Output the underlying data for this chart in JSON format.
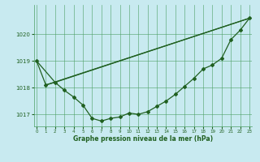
{
  "xlabel": "Graphe pression niveau de la mer (hPa)",
  "background_color": "#c8eaf0",
  "grid_color": "#4ca064",
  "line_color": "#206020",
  "ylim": [
    1016.55,
    1021.1
  ],
  "xlim": [
    -0.3,
    23.3
  ],
  "yticks": [
    1017,
    1018,
    1019,
    1020
  ],
  "xticks": [
    0,
    1,
    2,
    3,
    4,
    5,
    6,
    7,
    8,
    9,
    10,
    11,
    12,
    13,
    14,
    15,
    16,
    17,
    18,
    19,
    20,
    21,
    22,
    23
  ],
  "series_main": {
    "x": [
      0,
      1,
      2,
      3,
      4,
      5,
      6,
      7,
      8,
      9,
      10,
      11,
      12,
      13,
      14,
      15,
      16,
      17,
      18,
      19,
      20,
      21,
      22,
      23
    ],
    "y": [
      1019.0,
      1018.1,
      1018.2,
      1017.9,
      1017.65,
      1017.35,
      1016.85,
      1016.75,
      1016.85,
      1016.9,
      1017.05,
      1017.0,
      1017.1,
      1017.3,
      1017.5,
      1017.75,
      1018.05,
      1018.35,
      1018.7,
      1018.85,
      1019.1,
      1019.8,
      1020.15,
      1020.6
    ]
  },
  "series_upper": {
    "x": [
      1,
      23
    ],
    "y": [
      1018.1,
      1020.6
    ]
  },
  "series_mid": {
    "x": [
      0,
      2,
      23
    ],
    "y": [
      1019.0,
      1018.2,
      1020.6
    ]
  }
}
